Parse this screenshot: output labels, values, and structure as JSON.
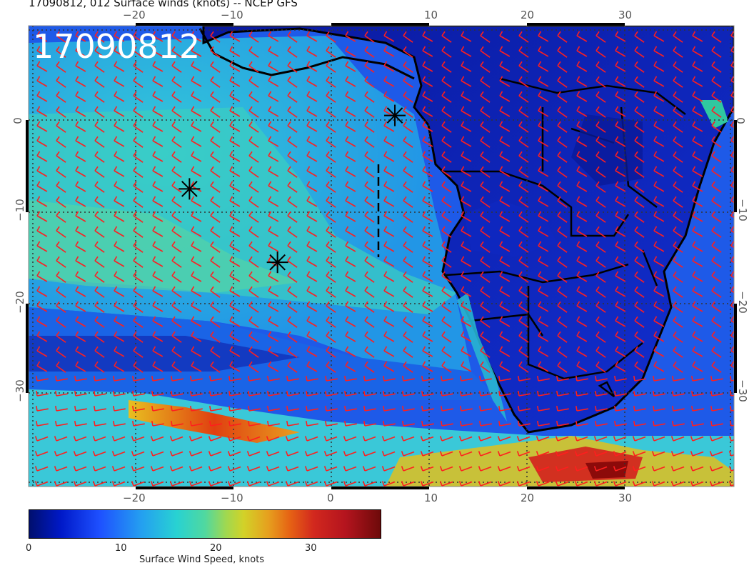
{
  "title": "17090812, 012 Surface winds (knots) -- NCEP GFS",
  "stamp": "17090812",
  "lon_ticks": [
    "−20",
    "−10",
    "0",
    "10",
    "20",
    "30"
  ],
  "lat_ticks": [
    "0",
    "−10",
    "−20",
    "−30"
  ],
  "colorbar": {
    "title": "Surface Wind Speed, knots",
    "ticks": [
      "0",
      "10",
      "20",
      "30"
    ],
    "colors": [
      "#000f6e",
      "#0019c8",
      "#1e50ff",
      "#24a0f0",
      "#28d2d2",
      "#50d8a0",
      "#a0d850",
      "#d2d228",
      "#e6a01e",
      "#e66414",
      "#d2281e",
      "#b4141e",
      "#6e0a0a"
    ]
  },
  "markers": [
    {
      "name": "storm-marker-1",
      "lon": -14.5,
      "lat": -7.5
    },
    {
      "name": "storm-marker-2",
      "lon": -5.5,
      "lat": -15.5
    },
    {
      "name": "storm-marker-3",
      "lon": 6.5,
      "lat": 0.5
    }
  ],
  "barb_color": "#ff1e1e"
}
